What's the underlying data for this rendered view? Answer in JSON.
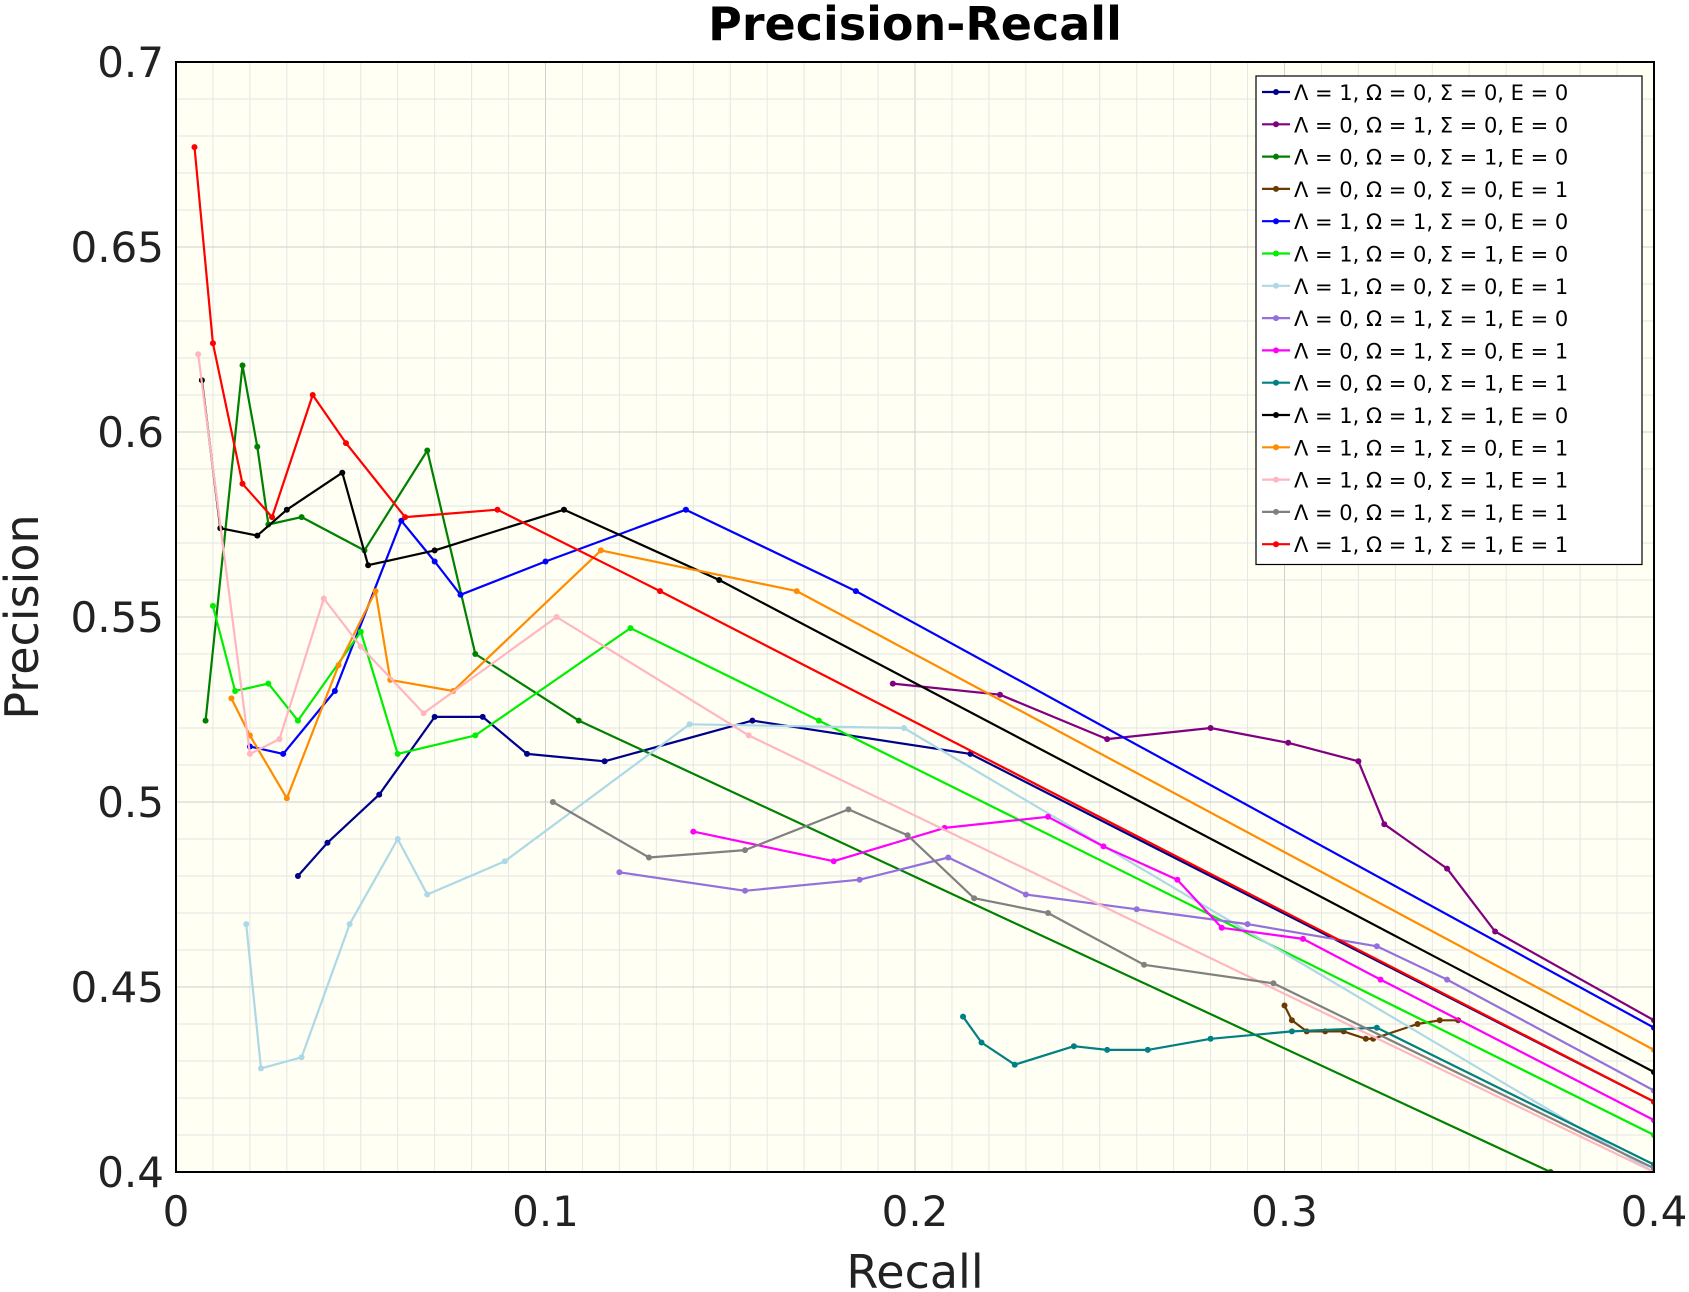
{
  "chart_data": {
    "type": "line",
    "title": "Precision-Recall",
    "xlabel": "Recall",
    "ylabel": "Precision",
    "xlim": [
      0,
      0.4
    ],
    "ylim": [
      0.4,
      0.7
    ],
    "xticks": [
      0,
      0.1,
      0.2,
      0.3,
      0.4
    ],
    "xtick_labels": [
      "0",
      "0.1",
      "0.2",
      "0.3",
      "0.4"
    ],
    "yticks": [
      0.4,
      0.45,
      0.5,
      0.55,
      0.6,
      0.65,
      0.7
    ],
    "ytick_labels": [
      "0.4",
      "0.45",
      "0.5",
      "0.55",
      "0.6",
      "0.65",
      "0.7"
    ],
    "grid": true,
    "legend_position": "top-right",
    "series": [
      {
        "name": "Λ = 1, Ω = 0, Σ = 0, E = 0",
        "color": "#00008b",
        "x": [
          0.033,
          0.041,
          0.055,
          0.07,
          0.083,
          0.095,
          0.116,
          0.156,
          0.215,
          0.4
        ],
        "y": [
          0.48,
          0.489,
          0.502,
          0.523,
          0.523,
          0.513,
          0.511,
          0.522,
          0.513,
          0.419
        ]
      },
      {
        "name": "Λ = 0, Ω = 1, Σ = 0, E = 0",
        "color": "#800080",
        "x": [
          0.194,
          0.223,
          0.252,
          0.28,
          0.301,
          0.32,
          0.327,
          0.344,
          0.357,
          0.4
        ],
        "y": [
          0.532,
          0.529,
          0.517,
          0.52,
          0.516,
          0.511,
          0.494,
          0.482,
          0.465,
          0.441
        ]
      },
      {
        "name": "Λ = 0, Ω = 0, Σ = 1, E = 0",
        "color": "#008000",
        "x": [
          0.008,
          0.018,
          0.022,
          0.025,
          0.034,
          0.051,
          0.068,
          0.081,
          0.109,
          0.372
        ],
        "y": [
          0.522,
          0.618,
          0.596,
          0.575,
          0.577,
          0.568,
          0.595,
          0.54,
          0.522,
          0.4
        ]
      },
      {
        "name": "Λ = 0, Ω = 0, Σ = 0, E = 1",
        "color": "#6b3a00",
        "x": [
          0.3,
          0.302,
          0.306,
          0.311,
          0.316,
          0.322,
          0.324,
          0.336,
          0.342,
          0.347
        ],
        "y": [
          0.445,
          0.441,
          0.438,
          0.438,
          0.438,
          0.436,
          0.436,
          0.44,
          0.441,
          0.441
        ]
      },
      {
        "name": "Λ = 1, Ω = 1, Σ = 0, E = 0",
        "color": "#0000ff",
        "x": [
          0.02,
          0.029,
          0.043,
          0.061,
          0.07,
          0.077,
          0.1,
          0.138,
          0.184,
          0.4
        ],
        "y": [
          0.515,
          0.513,
          0.53,
          0.576,
          0.565,
          0.556,
          0.565,
          0.579,
          0.557,
          0.439
        ]
      },
      {
        "name": "Λ = 1, Ω = 0, Σ = 1, E = 0",
        "color": "#00ee00",
        "x": [
          0.01,
          0.016,
          0.025,
          0.033,
          0.05,
          0.06,
          0.081,
          0.123,
          0.174,
          0.4
        ],
        "y": [
          0.553,
          0.53,
          0.532,
          0.522,
          0.546,
          0.513,
          0.518,
          0.547,
          0.522,
          0.41
        ]
      },
      {
        "name": "Λ = 1, Ω = 0, Σ = 0, E = 1",
        "color": "#add8e6",
        "x": [
          0.019,
          0.023,
          0.034,
          0.047,
          0.06,
          0.068,
          0.089,
          0.139,
          0.197,
          0.4
        ],
        "y": [
          0.467,
          0.428,
          0.431,
          0.467,
          0.49,
          0.475,
          0.484,
          0.521,
          0.52,
          0.4
        ]
      },
      {
        "name": "Λ = 0, Ω = 1, Σ = 1, E = 0",
        "color": "#9370db",
        "x": [
          0.12,
          0.154,
          0.185,
          0.209,
          0.23,
          0.26,
          0.29,
          0.325,
          0.344,
          0.4
        ],
        "y": [
          0.481,
          0.476,
          0.479,
          0.485,
          0.475,
          0.471,
          0.467,
          0.461,
          0.452,
          0.422
        ]
      },
      {
        "name": "Λ = 0, Ω = 1, Σ = 0, E = 1",
        "color": "#ff00ff",
        "x": [
          0.14,
          0.178,
          0.208,
          0.236,
          0.251,
          0.271,
          0.283,
          0.305,
          0.326,
          0.4
        ],
        "y": [
          0.492,
          0.484,
          0.493,
          0.496,
          0.488,
          0.479,
          0.466,
          0.463,
          0.452,
          0.414
        ]
      },
      {
        "name": "Λ = 0, Ω = 0, Σ = 1, E = 1",
        "color": "#008080",
        "x": [
          0.213,
          0.218,
          0.227,
          0.243,
          0.252,
          0.263,
          0.28,
          0.302,
          0.325,
          0.4
        ],
        "y": [
          0.442,
          0.435,
          0.429,
          0.434,
          0.433,
          0.433,
          0.436,
          0.438,
          0.439,
          0.402
        ]
      },
      {
        "name": "Λ = 1, Ω = 1, Σ = 1, E = 0",
        "color": "#000000",
        "x": [
          0.007,
          0.012,
          0.022,
          0.03,
          0.045,
          0.052,
          0.07,
          0.105,
          0.147,
          0.4
        ],
        "y": [
          0.614,
          0.574,
          0.572,
          0.579,
          0.589,
          0.564,
          0.568,
          0.579,
          0.56,
          0.427
        ]
      },
      {
        "name": "Λ = 1, Ω = 1, Σ = 0, E = 1",
        "color": "#ff8c00",
        "x": [
          0.015,
          0.02,
          0.03,
          0.044,
          0.054,
          0.058,
          0.075,
          0.115,
          0.168,
          0.4
        ],
        "y": [
          0.528,
          0.518,
          0.501,
          0.537,
          0.557,
          0.533,
          0.53,
          0.568,
          0.557,
          0.433
        ]
      },
      {
        "name": "Λ = 1, Ω = 0, Σ = 1, E = 1",
        "color": "#ffb6c1",
        "x": [
          0.006,
          0.02,
          0.028,
          0.04,
          0.05,
          0.067,
          0.103,
          0.155,
          0.4
        ],
        "y": [
          0.621,
          0.513,
          0.517,
          0.555,
          0.542,
          0.524,
          0.55,
          0.518,
          0.4
        ]
      },
      {
        "name": "Λ = 0, Ω = 1, Σ = 1, E = 1",
        "color": "#808080",
        "x": [
          0.102,
          0.128,
          0.154,
          0.182,
          0.198,
          0.216,
          0.236,
          0.262,
          0.297,
          0.4
        ],
        "y": [
          0.5,
          0.485,
          0.487,
          0.498,
          0.491,
          0.474,
          0.47,
          0.456,
          0.451,
          0.401
        ]
      },
      {
        "name": "Λ = 1, Ω = 1, Σ = 1, E = 1",
        "color": "#ff0000",
        "x": [
          0.005,
          0.01,
          0.018,
          0.026,
          0.037,
          0.046,
          0.062,
          0.087,
          0.131,
          0.4
        ],
        "y": [
          0.677,
          0.624,
          0.586,
          0.577,
          0.61,
          0.597,
          0.577,
          0.579,
          0.557,
          0.419
        ]
      }
    ]
  }
}
